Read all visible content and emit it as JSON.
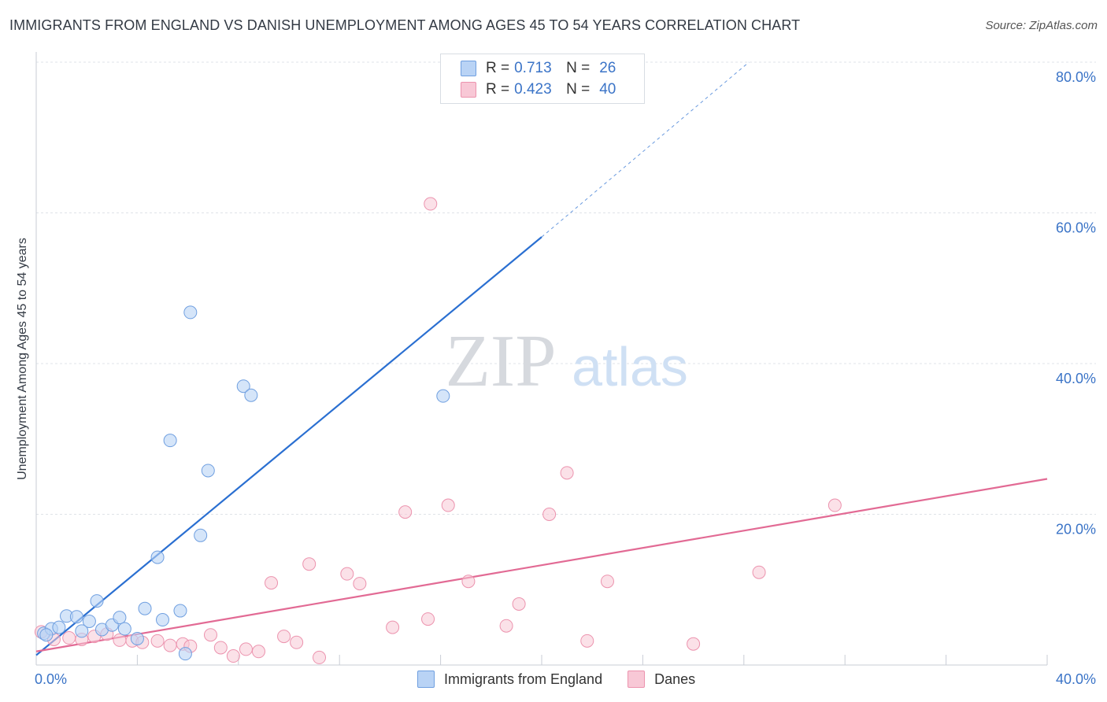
{
  "header": {
    "title": "IMMIGRANTS FROM ENGLAND VS DANISH UNEMPLOYMENT AMONG AGES 45 TO 54 YEARS CORRELATION CHART",
    "source": "Source: ZipAtlas.com"
  },
  "watermark": {
    "zip": "ZIP",
    "atlas": "atlas"
  },
  "legend_top": [
    {
      "r_label": "R =",
      "r_value": "0.713",
      "n_label": "N =",
      "n_value": "26"
    },
    {
      "r_label": "R =",
      "r_value": "0.423",
      "n_label": "N =",
      "n_value": "40"
    }
  ],
  "legend_bottom": [
    "Immigrants from England",
    "Danes"
  ],
  "colors": {
    "england_fill": "#b9d3f5",
    "england_stroke": "#6f9fe0",
    "england_line": "#2a6fd1",
    "danes_fill": "#f8c8d6",
    "danes_stroke": "#ec93ae",
    "danes_line": "#e26a94",
    "axis_text": "#3b74c7",
    "grid": "#dfe3e8"
  },
  "chart_data": {
    "type": "scatter",
    "title": "IMMIGRANTS FROM ENGLAND VS DANISH UNEMPLOYMENT AMONG AGES 45 TO 54 YEARS CORRELATION CHART",
    "xlabel": "",
    "ylabel": "Unemployment Among Ages 45 to 54 years",
    "xlim": [
      0,
      40
    ],
    "ylim": [
      0,
      80
    ],
    "x_tick_labels": [
      "0.0%",
      "40.0%"
    ],
    "y_ticks": [
      20,
      40,
      60,
      80
    ],
    "y_tick_labels": [
      "20.0%",
      "40.0%",
      "60.0%",
      "80.0%"
    ],
    "series": [
      {
        "name": "Immigrants from England",
        "R": 0.713,
        "N": 26,
        "points": [
          [
            0.3,
            4.2
          ],
          [
            0.6,
            4.8
          ],
          [
            0.9,
            5.0
          ],
          [
            1.2,
            6.5
          ],
          [
            1.6,
            6.4
          ],
          [
            2.1,
            5.8
          ],
          [
            1.8,
            4.5
          ],
          [
            2.4,
            8.5
          ],
          [
            2.6,
            4.7
          ],
          [
            3.0,
            5.3
          ],
          [
            3.3,
            6.3
          ],
          [
            3.5,
            4.8
          ],
          [
            4.0,
            3.5
          ],
          [
            4.3,
            7.5
          ],
          [
            4.8,
            14.3
          ],
          [
            5.0,
            6.0
          ],
          [
            5.3,
            29.8
          ],
          [
            5.7,
            7.2
          ],
          [
            5.9,
            1.5
          ],
          [
            6.1,
            46.8
          ],
          [
            6.5,
            17.2
          ],
          [
            6.8,
            25.8
          ],
          [
            8.2,
            37.0
          ],
          [
            8.5,
            35.8
          ],
          [
            16.1,
            35.7
          ],
          [
            0.4,
            4.0
          ]
        ],
        "trend": {
          "x0": 0.0,
          "y0": 1.3,
          "x1": 20.0,
          "y1": 56.8,
          "dash_x1": 28.2,
          "dash_y1": 80.0
        }
      },
      {
        "name": "Danes",
        "R": 0.423,
        "N": 40,
        "points": [
          [
            0.2,
            4.4
          ],
          [
            0.7,
            3.4
          ],
          [
            1.3,
            3.6
          ],
          [
            1.8,
            3.4
          ],
          [
            2.3,
            3.8
          ],
          [
            2.8,
            4.1
          ],
          [
            3.3,
            3.3
          ],
          [
            3.8,
            3.2
          ],
          [
            4.2,
            3.0
          ],
          [
            4.8,
            3.2
          ],
          [
            5.3,
            2.6
          ],
          [
            5.8,
            2.8
          ],
          [
            6.1,
            2.5
          ],
          [
            6.9,
            4.0
          ],
          [
            7.3,
            2.3
          ],
          [
            7.8,
            1.2
          ],
          [
            8.3,
            2.1
          ],
          [
            8.8,
            1.8
          ],
          [
            9.3,
            10.9
          ],
          [
            9.8,
            3.8
          ],
          [
            10.3,
            3.0
          ],
          [
            10.8,
            13.4
          ],
          [
            11.2,
            1.0
          ],
          [
            12.3,
            12.1
          ],
          [
            12.8,
            10.8
          ],
          [
            14.1,
            5.0
          ],
          [
            14.6,
            20.3
          ],
          [
            15.5,
            6.1
          ],
          [
            15.6,
            61.2
          ],
          [
            16.3,
            21.2
          ],
          [
            17.1,
            11.1
          ],
          [
            18.6,
            5.2
          ],
          [
            19.1,
            8.1
          ],
          [
            20.3,
            20.0
          ],
          [
            21.0,
            25.5
          ],
          [
            21.8,
            3.2
          ],
          [
            22.6,
            11.1
          ],
          [
            26.0,
            2.8
          ],
          [
            28.6,
            12.3
          ],
          [
            31.6,
            21.2
          ]
        ],
        "trend": {
          "x0": 0.0,
          "y0": 1.8,
          "x1": 40.0,
          "y1": 24.7
        }
      }
    ]
  }
}
